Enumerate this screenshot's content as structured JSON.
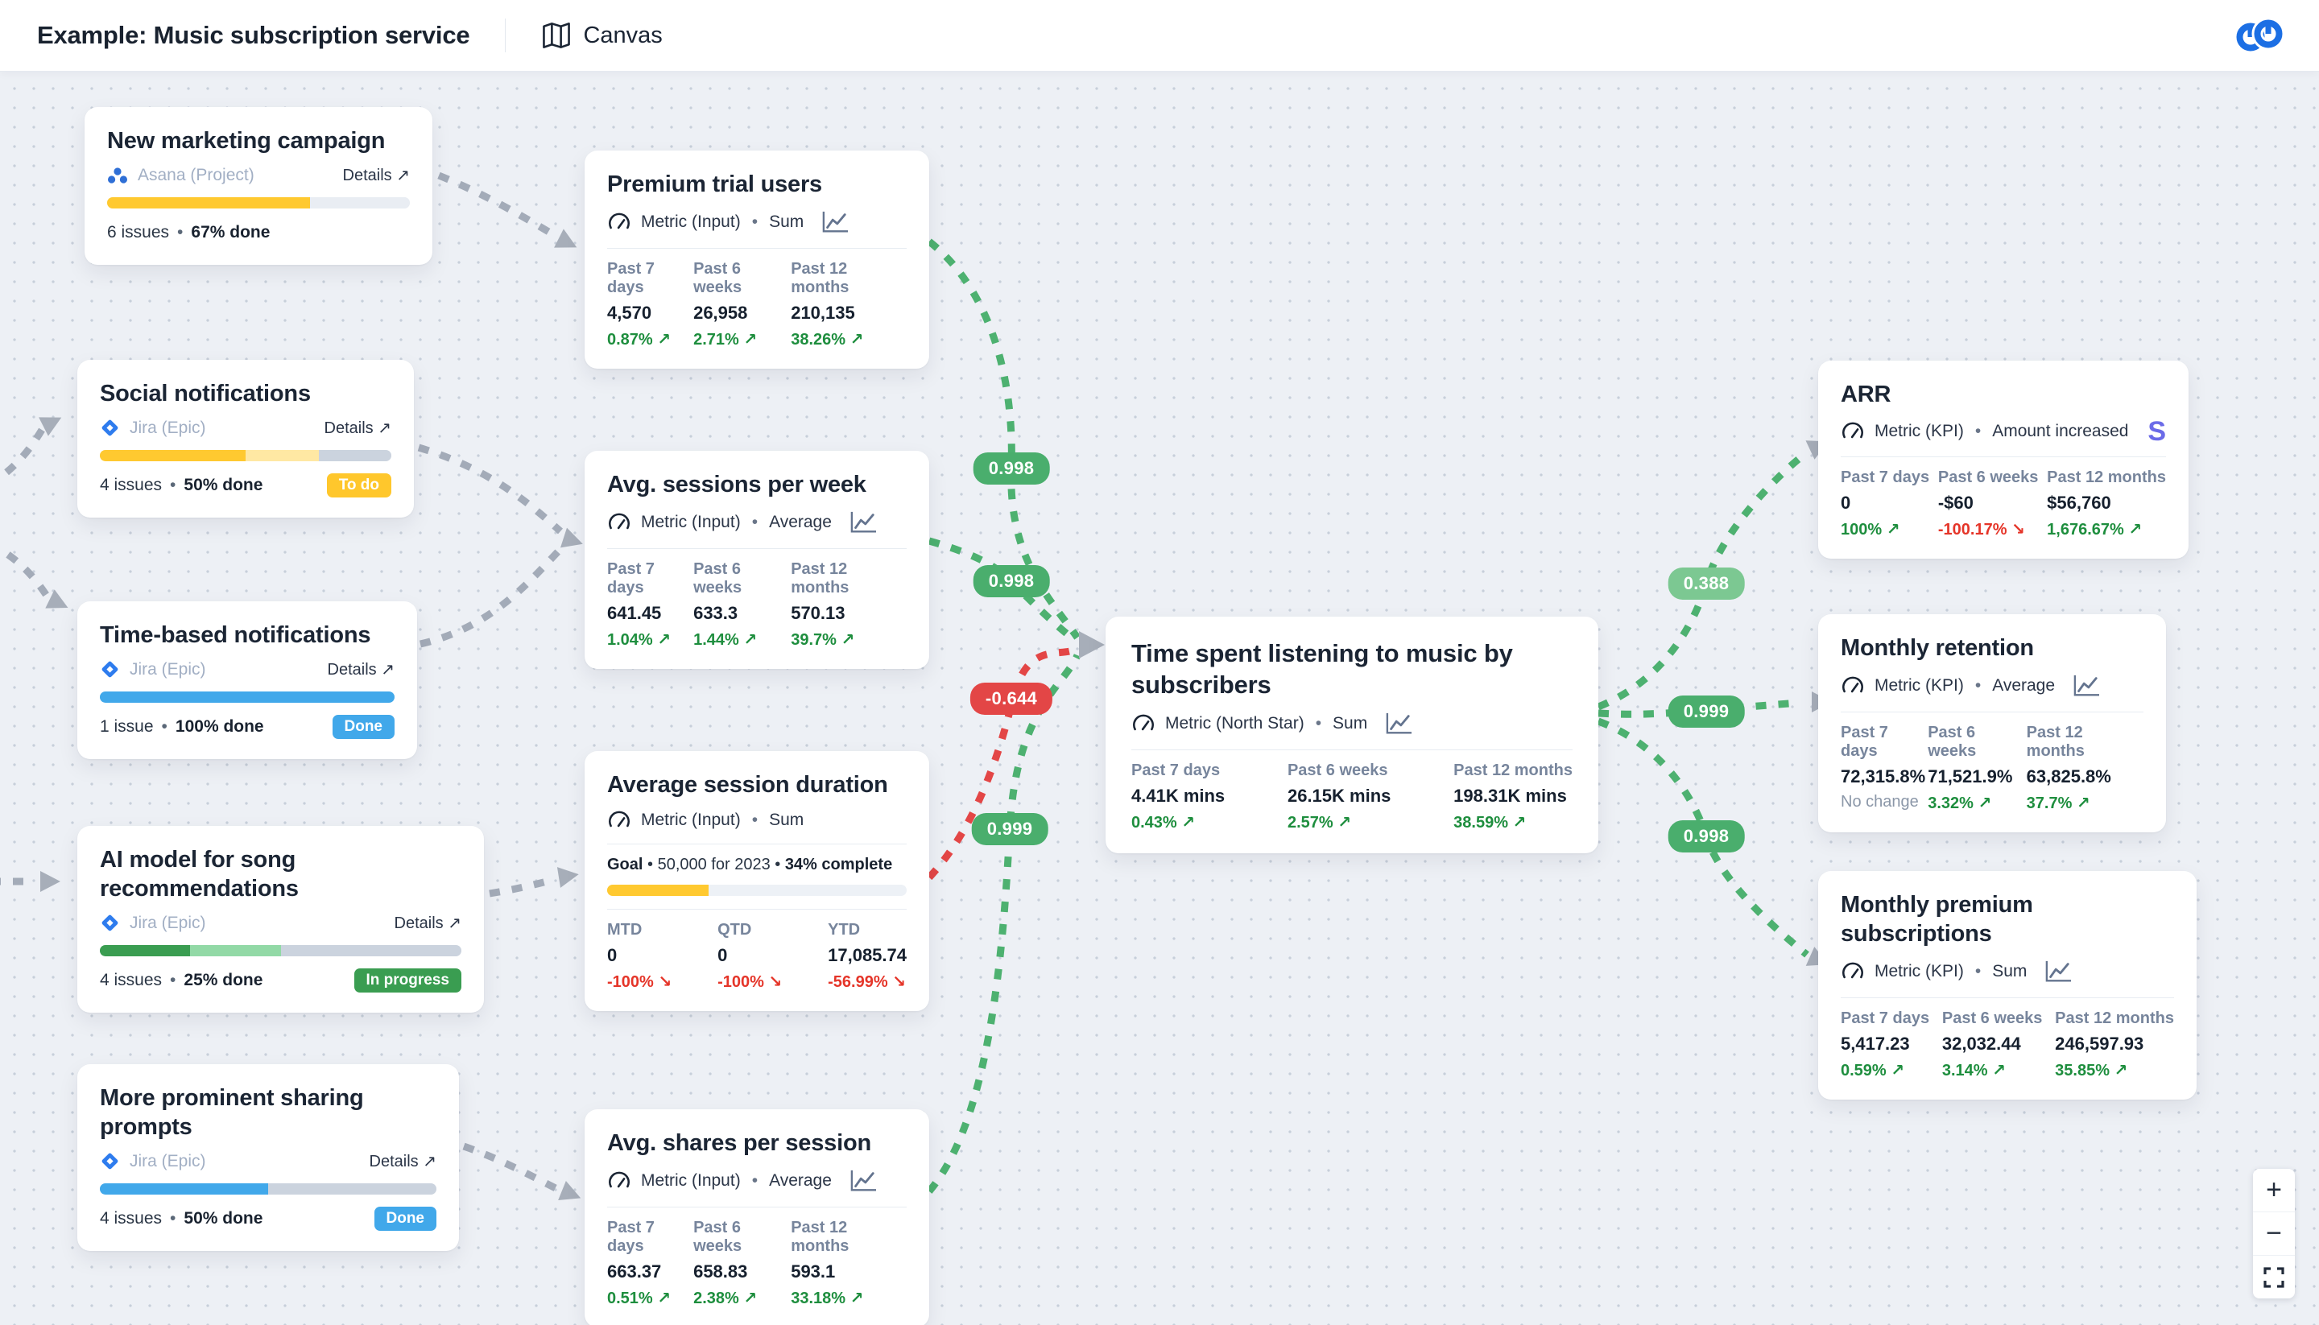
{
  "header": {
    "title": "Example: Music subscription service",
    "nav_label": "Canvas"
  },
  "ui": {
    "bullet": "•",
    "dot": "•"
  },
  "projects": [
    {
      "title": "New marketing campaign",
      "source": {
        "tool": "asana",
        "label": "Asana (Project)"
      },
      "details_label": "Details ↗",
      "progress": [
        {
          "color": "#FFC930",
          "pct": 67
        },
        {
          "color": "#E9EDF3",
          "pct": 33
        }
      ],
      "issues": "6 issues",
      "done": "67% done"
    },
    {
      "title": "Social notifications",
      "source": {
        "tool": "jira",
        "label": "Jira (Epic)"
      },
      "details_label": "Details ↗",
      "progress": [
        {
          "color": "#FFC930",
          "pct": 50
        },
        {
          "color": "#FFE8A3",
          "pct": 25
        },
        {
          "color": "#CBD3DE",
          "pct": 25
        }
      ],
      "issues": "4 issues",
      "done": "50% done",
      "status": {
        "label": "To do",
        "color": "#FFC72C"
      }
    },
    {
      "title": "Time-based notifications",
      "source": {
        "tool": "jira",
        "label": "Jira (Epic)"
      },
      "details_label": "Details ↗",
      "progress": [
        {
          "color": "#41A8EA",
          "pct": 100
        }
      ],
      "issues": "1 issue",
      "done": "100% done",
      "status": {
        "label": "Done",
        "color": "#41A8EA"
      }
    },
    {
      "title": "AI model for song recommendations",
      "source": {
        "tool": "jira",
        "label": "Jira (Epic)"
      },
      "details_label": "Details ↗",
      "progress": [
        {
          "color": "#3A9D51",
          "pct": 25
        },
        {
          "color": "#92D9A6",
          "pct": 25
        },
        {
          "color": "#CBD3DE",
          "pct": 50
        }
      ],
      "issues": "4 issues",
      "done": "25% done",
      "status": {
        "label": "In progress",
        "color": "#3A9D51"
      }
    },
    {
      "title": "More prominent sharing prompts",
      "source": {
        "tool": "jira",
        "label": "Jira (Epic)"
      },
      "details_label": "Details ↗",
      "progress": [
        {
          "color": "#41A8EA",
          "pct": 50
        },
        {
          "color": "#CBD3DE",
          "pct": 50
        }
      ],
      "issues": "4 issues",
      "done": "50% done",
      "status": {
        "label": "Done",
        "color": "#41A8EA"
      }
    }
  ],
  "metrics": [
    {
      "title": "Premium trial users",
      "kind": "Metric (Input)",
      "agg": "Sum",
      "columns": [
        {
          "label": "Past 7 days",
          "value": "4,570",
          "change": "0.87% ↗",
          "dir": "up"
        },
        {
          "label": "Past 6 weeks",
          "value": "26,958",
          "change": "2.71% ↗",
          "dir": "up"
        },
        {
          "label": "Past 12 months",
          "value": "210,135",
          "change": "38.26% ↗",
          "dir": "up"
        }
      ]
    },
    {
      "title": "Avg. sessions per week",
      "kind": "Metric (Input)",
      "agg": "Average",
      "columns": [
        {
          "label": "Past 7 days",
          "value": "641.45",
          "change": "1.04% ↗",
          "dir": "up"
        },
        {
          "label": "Past 6 weeks",
          "value": "633.3",
          "change": "1.44% ↗",
          "dir": "up"
        },
        {
          "label": "Past 12 months",
          "value": "570.13",
          "change": "39.7% ↗",
          "dir": "up"
        }
      ]
    },
    {
      "title": "Average session duration",
      "kind": "Metric (Input)",
      "agg": "Sum",
      "goal": {
        "label": "Goal",
        "mid": "• 50,000 for 2023 •",
        "complete": "34% complete",
        "bar": [
          {
            "color": "#FFC930",
            "pct": 34
          }
        ]
      },
      "columns": [
        {
          "label": "MTD",
          "value": "0",
          "change": "-100% ↘",
          "dir": "down"
        },
        {
          "label": "QTD",
          "value": "0",
          "change": "-100% ↘",
          "dir": "down"
        },
        {
          "label": "YTD",
          "value": "17,085.74",
          "change": "-56.99% ↘",
          "dir": "down"
        }
      ]
    },
    {
      "title": "Avg. shares per session",
      "kind": "Metric (Input)",
      "agg": "Average",
      "columns": [
        {
          "label": "Past 7 days",
          "value": "663.37",
          "change": "0.51% ↗",
          "dir": "up"
        },
        {
          "label": "Past 6 weeks",
          "value": "658.83",
          "change": "2.38% ↗",
          "dir": "up"
        },
        {
          "label": "Past 12 months",
          "value": "593.1",
          "change": "33.18% ↗",
          "dir": "up"
        }
      ]
    }
  ],
  "north_star": {
    "title": "Time spent listening to music by subscribers",
    "kind": "Metric (North Star)",
    "agg": "Sum",
    "columns": [
      {
        "label": "Past 7 days",
        "value": "4.41K mins",
        "change": "0.43% ↗",
        "dir": "up"
      },
      {
        "label": "Past 6 weeks",
        "value": "26.15K mins",
        "change": "2.57% ↗",
        "dir": "up"
      },
      {
        "label": "Past 12 months",
        "value": "198.31K mins",
        "change": "38.59% ↗",
        "dir": "up"
      }
    ]
  },
  "kpis": [
    {
      "title": "ARR",
      "kind": "Metric (KPI)",
      "agg": "Amount increased",
      "integration_glyph": "S",
      "columns": [
        {
          "label": "Past 7 days",
          "value": "0",
          "change": "100% ↗",
          "dir": "up"
        },
        {
          "label": "Past 6 weeks",
          "value": "-$60",
          "change": "-100.17% ↘",
          "dir": "down"
        },
        {
          "label": "Past 12 months",
          "value": "$56,760",
          "change": "1,676.67% ↗",
          "dir": "up"
        }
      ]
    },
    {
      "title": "Monthly retention",
      "kind": "Metric (KPI)",
      "agg": "Average",
      "columns": [
        {
          "label": "Past 7 days",
          "value": "72,315.8%",
          "change": "No change",
          "dir": "none"
        },
        {
          "label": "Past 6 weeks",
          "value": "71,521.9%",
          "change": "3.32% ↗",
          "dir": "up"
        },
        {
          "label": "Past 12 months",
          "value": "63,825.8%",
          "change": "37.7% ↗",
          "dir": "up"
        }
      ]
    },
    {
      "title": "Monthly premium subscriptions",
      "kind": "Metric (KPI)",
      "agg": "Sum",
      "columns": [
        {
          "label": "Past 7 days",
          "value": "5,417.23",
          "change": "0.59% ↗",
          "dir": "up"
        },
        {
          "label": "Past 6 weeks",
          "value": "32,032.44",
          "change": "3.14% ↗",
          "dir": "up"
        },
        {
          "label": "Past 12 months",
          "value": "246,597.93",
          "change": "35.85% ↗",
          "dir": "up"
        }
      ]
    }
  ],
  "correlations": [
    {
      "value": "0.998",
      "color": "#4AAE6D"
    },
    {
      "value": "0.998",
      "color": "#4AAE6D"
    },
    {
      "value": "-0.644",
      "color": "#E34646"
    },
    {
      "value": "0.999",
      "color": "#4AAE6D"
    },
    {
      "value": "0.388",
      "color": "#7CC892"
    },
    {
      "value": "0.999",
      "color": "#4AAE6D"
    },
    {
      "value": "0.998",
      "color": "#4AAE6D"
    }
  ],
  "zoom_controls": {
    "zoom_in": "+",
    "zoom_out": "−"
  }
}
